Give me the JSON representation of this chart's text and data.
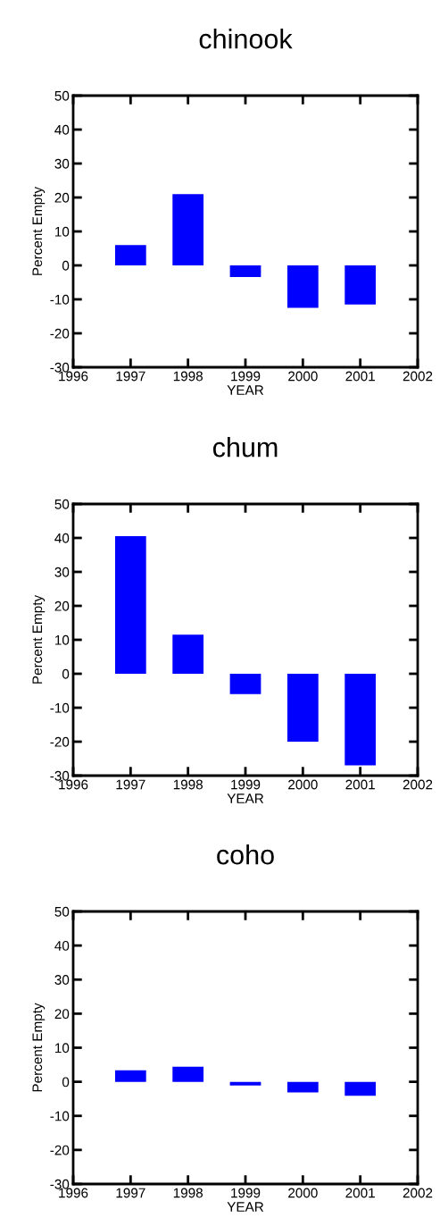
{
  "chart_data": [
    {
      "type": "bar",
      "title": "chinook",
      "xlabel": "YEAR",
      "ylabel": "Percent Empty",
      "x": [
        1997,
        1998,
        1999,
        2000,
        2001
      ],
      "values": [
        6,
        21,
        -3.4,
        -12.5,
        -11.5
      ],
      "color": "#0000ff",
      "xlim": [
        1996,
        2002
      ],
      "xticks": [
        1996,
        1997,
        1998,
        1999,
        2000,
        2001,
        2002
      ],
      "ylim": [
        -30,
        50
      ],
      "yticks": [
        -30,
        -20,
        -10,
        0,
        10,
        20,
        30,
        40,
        50
      ],
      "grid": false
    },
    {
      "type": "bar",
      "title": "chum",
      "xlabel": "YEAR",
      "ylabel": "Percent Empty",
      "x": [
        1997,
        1998,
        1999,
        2000,
        2001
      ],
      "values": [
        40.5,
        11.5,
        -6,
        -20,
        -27
      ],
      "color": "#0000ff",
      "xlim": [
        1996,
        2002
      ],
      "xticks": [
        1996,
        1997,
        1998,
        1999,
        2000,
        2001,
        2002
      ],
      "ylim": [
        -30,
        50
      ],
      "yticks": [
        -30,
        -20,
        -10,
        0,
        10,
        20,
        30,
        40,
        50
      ],
      "grid": false
    },
    {
      "type": "bar",
      "title": "coho",
      "xlabel": "YEAR",
      "ylabel": "Percent Empty",
      "x": [
        1997,
        1998,
        1999,
        2000,
        2001
      ],
      "values": [
        3.4,
        4.4,
        -1.1,
        -3.1,
        -4.1
      ],
      "color": "#0000ff",
      "xlim": [
        1996,
        2002
      ],
      "xticks": [
        1996,
        1997,
        1998,
        1999,
        2000,
        2001,
        2002
      ],
      "ylim": [
        -30,
        50
      ],
      "yticks": [
        -30,
        -20,
        -10,
        0,
        10,
        20,
        30,
        40,
        50
      ],
      "grid": false
    }
  ]
}
